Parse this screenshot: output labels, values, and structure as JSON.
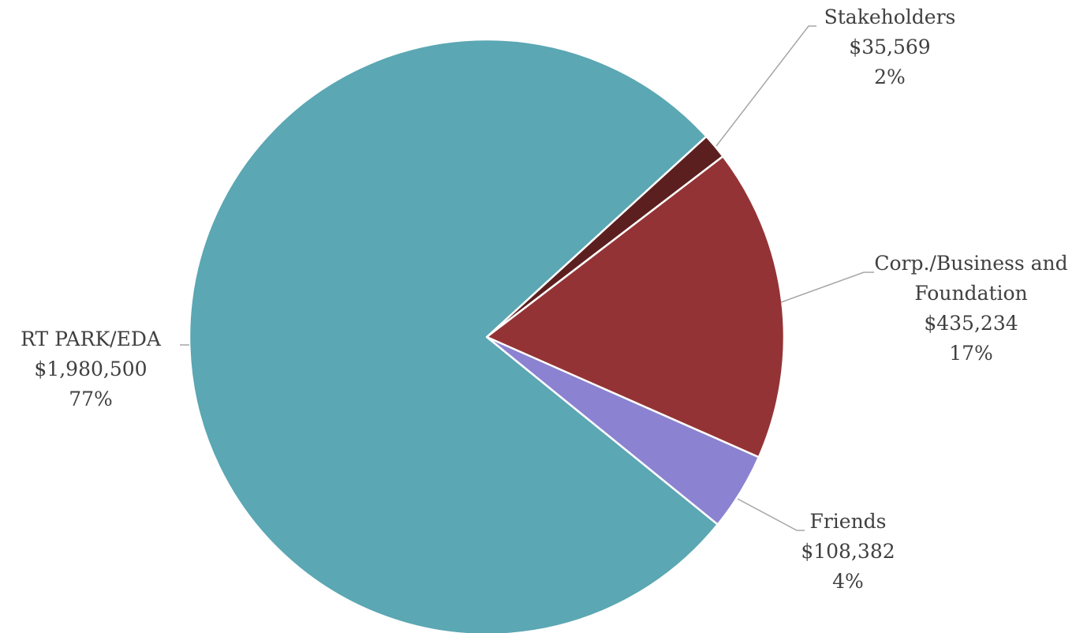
{
  "chart_data": {
    "type": "pie",
    "categories": [
      "Stakeholders",
      "Corp./Business and Foundation",
      "Friends",
      "RT PARK/EDA"
    ],
    "values": [
      35569,
      435234,
      108382,
      1980500
    ],
    "value_labels": [
      "$35,569",
      "$435,234",
      "$108,382",
      "$1,980,500"
    ],
    "percents": [
      2,
      17,
      4,
      77
    ],
    "percent_labels": [
      "2%",
      "17%",
      "4%",
      "77%"
    ],
    "colors": [
      "#5c1f1f",
      "#943335",
      "#8b82d1",
      "#5ba7b3"
    ]
  }
}
